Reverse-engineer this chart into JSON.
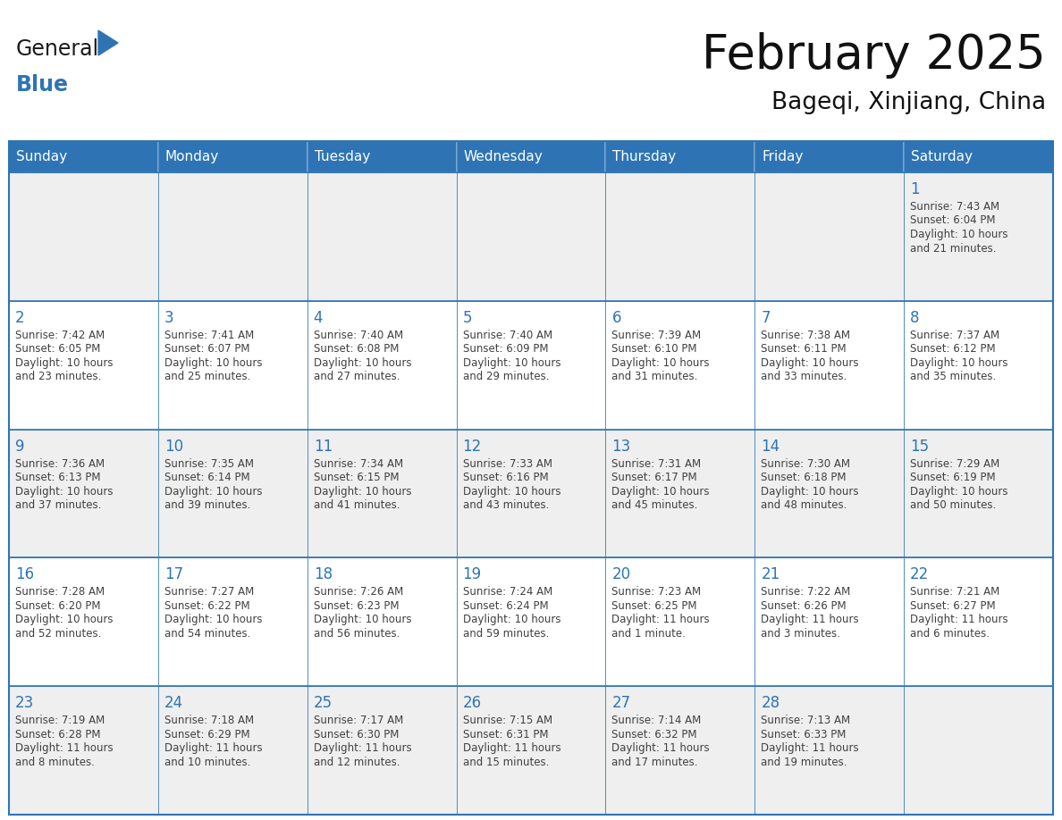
{
  "title": "February 2025",
  "subtitle": "Bageqi, Xinjiang, China",
  "header_color": "#2e74b5",
  "header_text_color": "#ffffff",
  "cell_bg_odd": "#efefef",
  "cell_bg_even": "#ffffff",
  "day_number_color": "#2e74b5",
  "text_color": "#404040",
  "border_color": "#2e74b5",
  "line_color": "#2e74b5",
  "days_of_week": [
    "Sunday",
    "Monday",
    "Tuesday",
    "Wednesday",
    "Thursday",
    "Friday",
    "Saturday"
  ],
  "weeks": [
    [
      {
        "day": null,
        "sunrise": null,
        "sunset": null,
        "daylight": null
      },
      {
        "day": null,
        "sunrise": null,
        "sunset": null,
        "daylight": null
      },
      {
        "day": null,
        "sunrise": null,
        "sunset": null,
        "daylight": null
      },
      {
        "day": null,
        "sunrise": null,
        "sunset": null,
        "daylight": null
      },
      {
        "day": null,
        "sunrise": null,
        "sunset": null,
        "daylight": null
      },
      {
        "day": null,
        "sunrise": null,
        "sunset": null,
        "daylight": null
      },
      {
        "day": 1,
        "sunrise": "7:43 AM",
        "sunset": "6:04 PM",
        "daylight": "10 hours and 21 minutes."
      }
    ],
    [
      {
        "day": 2,
        "sunrise": "7:42 AM",
        "sunset": "6:05 PM",
        "daylight": "10 hours and 23 minutes."
      },
      {
        "day": 3,
        "sunrise": "7:41 AM",
        "sunset": "6:07 PM",
        "daylight": "10 hours and 25 minutes."
      },
      {
        "day": 4,
        "sunrise": "7:40 AM",
        "sunset": "6:08 PM",
        "daylight": "10 hours and 27 minutes."
      },
      {
        "day": 5,
        "sunrise": "7:40 AM",
        "sunset": "6:09 PM",
        "daylight": "10 hours and 29 minutes."
      },
      {
        "day": 6,
        "sunrise": "7:39 AM",
        "sunset": "6:10 PM",
        "daylight": "10 hours and 31 minutes."
      },
      {
        "day": 7,
        "sunrise": "7:38 AM",
        "sunset": "6:11 PM",
        "daylight": "10 hours and 33 minutes."
      },
      {
        "day": 8,
        "sunrise": "7:37 AM",
        "sunset": "6:12 PM",
        "daylight": "10 hours and 35 minutes."
      }
    ],
    [
      {
        "day": 9,
        "sunrise": "7:36 AM",
        "sunset": "6:13 PM",
        "daylight": "10 hours and 37 minutes."
      },
      {
        "day": 10,
        "sunrise": "7:35 AM",
        "sunset": "6:14 PM",
        "daylight": "10 hours and 39 minutes."
      },
      {
        "day": 11,
        "sunrise": "7:34 AM",
        "sunset": "6:15 PM",
        "daylight": "10 hours and 41 minutes."
      },
      {
        "day": 12,
        "sunrise": "7:33 AM",
        "sunset": "6:16 PM",
        "daylight": "10 hours and 43 minutes."
      },
      {
        "day": 13,
        "sunrise": "7:31 AM",
        "sunset": "6:17 PM",
        "daylight": "10 hours and 45 minutes."
      },
      {
        "day": 14,
        "sunrise": "7:30 AM",
        "sunset": "6:18 PM",
        "daylight": "10 hours and 48 minutes."
      },
      {
        "day": 15,
        "sunrise": "7:29 AM",
        "sunset": "6:19 PM",
        "daylight": "10 hours and 50 minutes."
      }
    ],
    [
      {
        "day": 16,
        "sunrise": "7:28 AM",
        "sunset": "6:20 PM",
        "daylight": "10 hours and 52 minutes."
      },
      {
        "day": 17,
        "sunrise": "7:27 AM",
        "sunset": "6:22 PM",
        "daylight": "10 hours and 54 minutes."
      },
      {
        "day": 18,
        "sunrise": "7:26 AM",
        "sunset": "6:23 PM",
        "daylight": "10 hours and 56 minutes."
      },
      {
        "day": 19,
        "sunrise": "7:24 AM",
        "sunset": "6:24 PM",
        "daylight": "10 hours and 59 minutes."
      },
      {
        "day": 20,
        "sunrise": "7:23 AM",
        "sunset": "6:25 PM",
        "daylight": "11 hours and 1 minute."
      },
      {
        "day": 21,
        "sunrise": "7:22 AM",
        "sunset": "6:26 PM",
        "daylight": "11 hours and 3 minutes."
      },
      {
        "day": 22,
        "sunrise": "7:21 AM",
        "sunset": "6:27 PM",
        "daylight": "11 hours and 6 minutes."
      }
    ],
    [
      {
        "day": 23,
        "sunrise": "7:19 AM",
        "sunset": "6:28 PM",
        "daylight": "11 hours and 8 minutes."
      },
      {
        "day": 24,
        "sunrise": "7:18 AM",
        "sunset": "6:29 PM",
        "daylight": "11 hours and 10 minutes."
      },
      {
        "day": 25,
        "sunrise": "7:17 AM",
        "sunset": "6:30 PM",
        "daylight": "11 hours and 12 minutes."
      },
      {
        "day": 26,
        "sunrise": "7:15 AM",
        "sunset": "6:31 PM",
        "daylight": "11 hours and 15 minutes."
      },
      {
        "day": 27,
        "sunrise": "7:14 AM",
        "sunset": "6:32 PM",
        "daylight": "11 hours and 17 minutes."
      },
      {
        "day": 28,
        "sunrise": "7:13 AM",
        "sunset": "6:33 PM",
        "daylight": "11 hours and 19 minutes."
      },
      {
        "day": null,
        "sunrise": null,
        "sunset": null,
        "daylight": null
      }
    ]
  ]
}
